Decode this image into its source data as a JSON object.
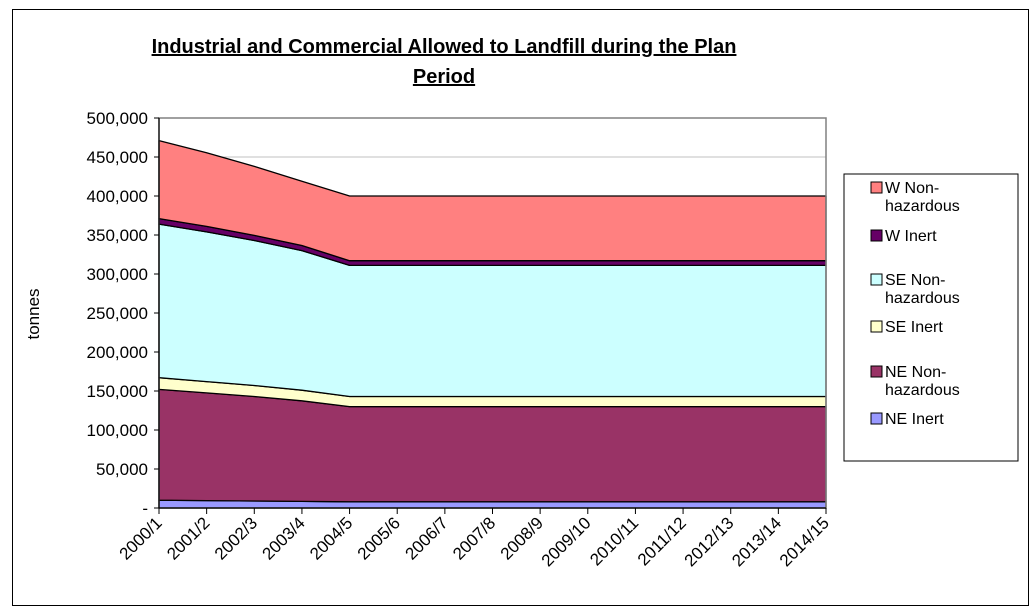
{
  "chart_data": {
    "type": "area",
    "stacked": true,
    "title_lines": [
      "Industrial and Commercial Allowed to Landfill during the Plan",
      "Period"
    ],
    "ylabel": "tonnes",
    "xlabel": "",
    "ylim": [
      0,
      500000
    ],
    "y_ticks": [
      0,
      50000,
      100000,
      150000,
      200000,
      250000,
      300000,
      350000,
      400000,
      450000,
      500000
    ],
    "y_tick_labels": [
      "-",
      "50,000",
      "100,000",
      "150,000",
      "200,000",
      "250,000",
      "300,000",
      "350,000",
      "400,000",
      "450,000",
      "500,000"
    ],
    "categories": [
      "2000/1",
      "2001/2",
      "2002/3",
      "2003/4",
      "2004/5",
      "2005/6",
      "2006/7",
      "2007/8",
      "2008/9",
      "2009/10",
      "2010/11",
      "2011/12",
      "2012/13",
      "2013/14",
      "2014/15"
    ],
    "grid": "horizontal",
    "legend_position": "right",
    "series": [
      {
        "name": "NE Inert",
        "legend_lines": [
          "NE Inert"
        ],
        "color": "#9999ff",
        "values": [
          10000,
          9500,
          9000,
          8500,
          8000,
          8000,
          8000,
          8000,
          8000,
          8000,
          8000,
          8000,
          8000,
          8000,
          8000
        ]
      },
      {
        "name": "NE Non-hazardous",
        "legend_lines": [
          "NE Non-",
          "hazardous"
        ],
        "color": "#993366",
        "values": [
          142000,
          138000,
          134000,
          129000,
          122000,
          122000,
          122000,
          122000,
          122000,
          122000,
          122000,
          122000,
          122000,
          122000,
          122000
        ]
      },
      {
        "name": "SE Inert",
        "legend_lines": [
          "SE Inert"
        ],
        "color": "#ffffcc",
        "values": [
          15000,
          14500,
          14000,
          13500,
          13000,
          13000,
          13000,
          13000,
          13000,
          13000,
          13000,
          13000,
          13000,
          13000,
          13000
        ]
      },
      {
        "name": "SE Non-hazardous",
        "legend_lines": [
          "SE Non-",
          "hazardous"
        ],
        "color": "#ccffff",
        "values": [
          197000,
          192000,
          186000,
          179000,
          168000,
          168000,
          168000,
          168000,
          168000,
          168000,
          168000,
          168000,
          168000,
          168000,
          168000
        ]
      },
      {
        "name": "W Inert",
        "legend_lines": [
          "W Inert"
        ],
        "color": "#660066",
        "values": [
          7000,
          7000,
          6500,
          6500,
          6000,
          6000,
          6000,
          6000,
          6000,
          6000,
          6000,
          6000,
          6000,
          6000,
          6000
        ]
      },
      {
        "name": "W Non-hazardous",
        "legend_lines": [
          "W Non-",
          "hazardous"
        ],
        "color": "#ff8080",
        "values": [
          100000,
          94500,
          88500,
          82500,
          83000,
          83000,
          83000,
          83000,
          83000,
          83000,
          83000,
          83000,
          83000,
          83000,
          83000
        ]
      }
    ]
  }
}
